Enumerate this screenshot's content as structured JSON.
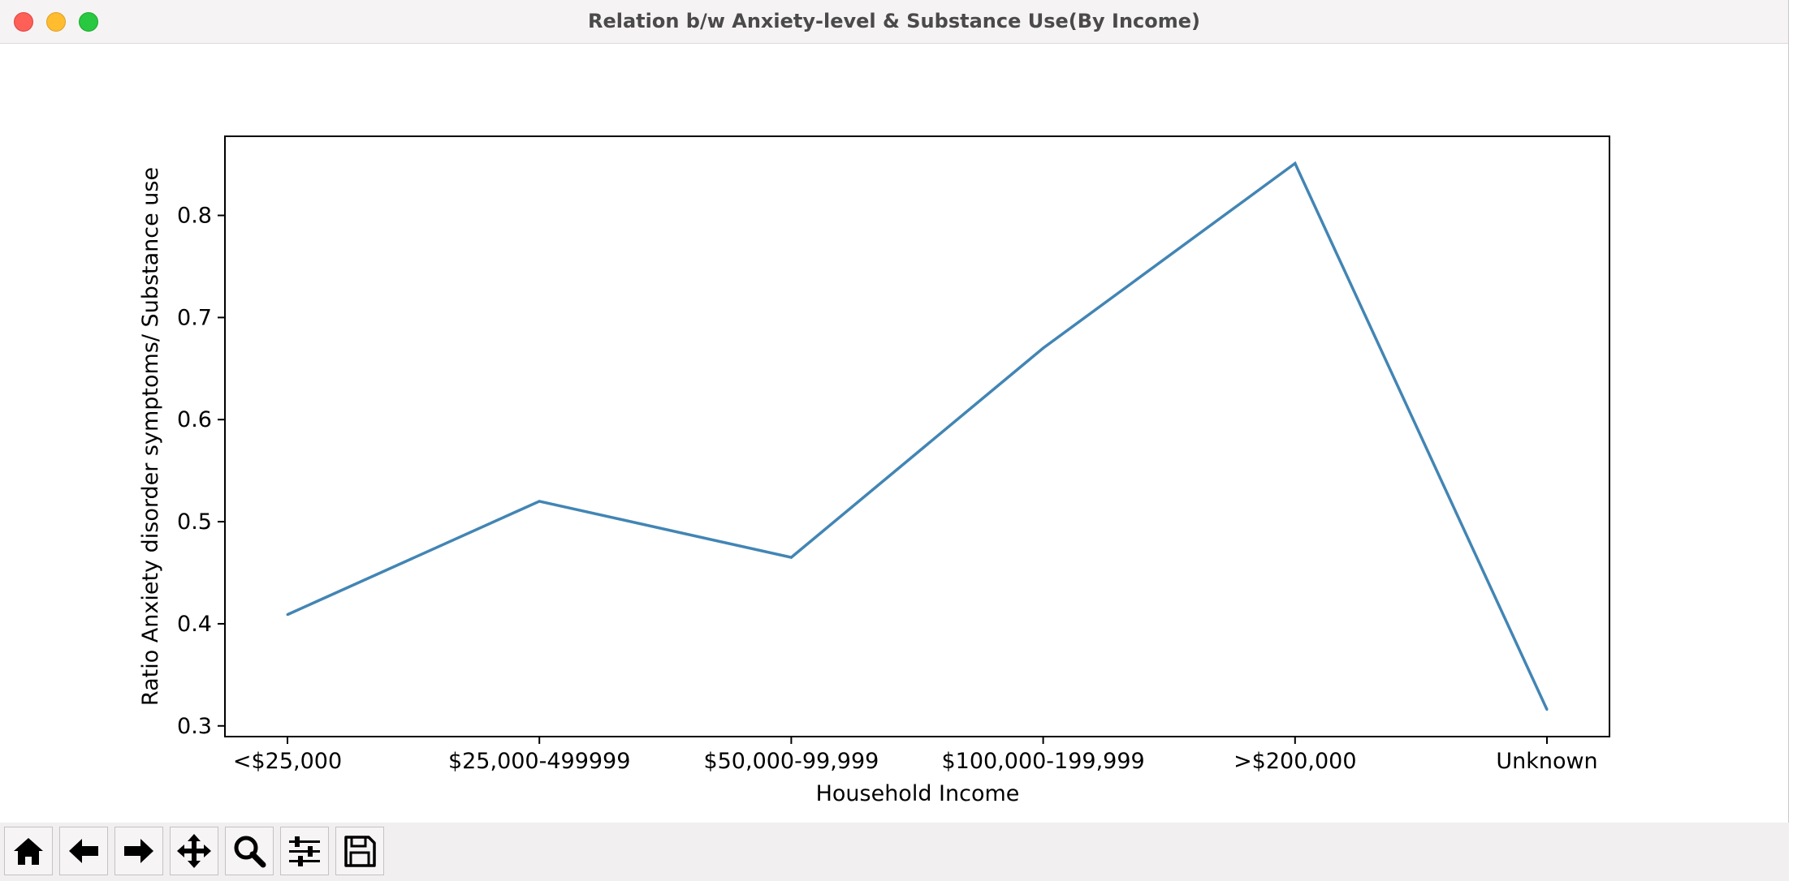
{
  "window": {
    "title": "Relation b/w Anxiety-level & Substance Use(By Income)"
  },
  "chart_data": {
    "type": "line",
    "title": "",
    "xlabel": "Household Income",
    "ylabel": "Ratio Anxiety disorder symptoms/ Substance use",
    "categories": [
      "<$25,000",
      "$25,000-499999",
      "$50,000-99,999",
      "$100,000-199,999",
      ">$200,000",
      "Unknown"
    ],
    "series": [
      {
        "values": [
          0.409,
          0.52,
          0.465,
          0.67,
          0.851,
          0.316
        ],
        "color": "#4285b4"
      }
    ],
    "ylim": [
      0.2895,
      0.8775
    ],
    "yticks": [
      0.3,
      0.4,
      0.5,
      0.6,
      0.7,
      0.8
    ],
    "ytick_labels": [
      "0.3",
      "0.4",
      "0.5",
      "0.6",
      "0.7",
      "0.8"
    ],
    "grid": false,
    "legend": "none"
  },
  "toolbar": {
    "tools": [
      {
        "name": "home-icon"
      },
      {
        "name": "back-arrow-icon"
      },
      {
        "name": "forward-arrow-icon"
      },
      {
        "name": "pan-move-icon"
      },
      {
        "name": "zoom-magnifier-icon"
      },
      {
        "name": "configure-subplots-icon"
      },
      {
        "name": "save-floppy-icon"
      }
    ]
  }
}
